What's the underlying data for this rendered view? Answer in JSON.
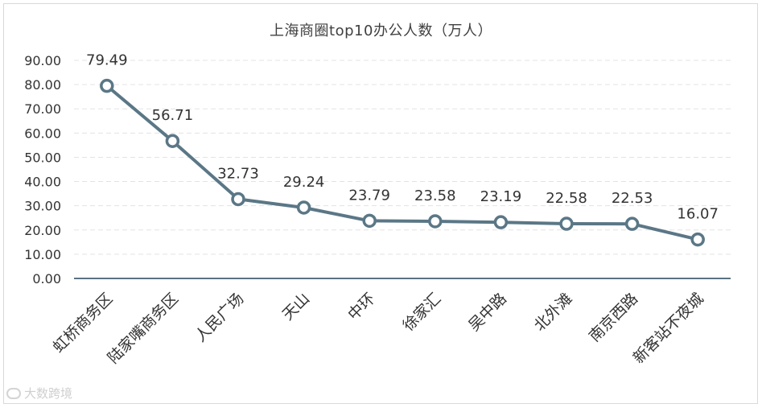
{
  "chart_data": {
    "type": "line",
    "title": "上海商圈top10办公人数（万人）",
    "categories": [
      "虹桥商务区",
      "陆家嘴商务区",
      "人民广场",
      "天山",
      "中环",
      "徐家汇",
      "吴中路",
      "北外滩",
      "南京西路",
      "新客站不夜城"
    ],
    "series": [
      {
        "values": [
          79.49,
          56.71,
          32.73,
          29.24,
          23.79,
          23.58,
          23.19,
          22.58,
          22.53,
          16.07
        ],
        "color": "#5b7786"
      }
    ],
    "data_labels": [
      "79.49",
      "56.71",
      "32.73",
      "29.24",
      "23.79",
      "23.58",
      "23.19",
      "22.58",
      "22.53",
      "16.07"
    ],
    "y_tick_labels": [
      "0.00",
      "10.00",
      "20.00",
      "30.00",
      "40.00",
      "50.00",
      "60.00",
      "70.00",
      "80.00",
      "90.00"
    ],
    "ylim": [
      0,
      90
    ],
    "xlabel": "",
    "ylabel": "",
    "grid": true,
    "gridline_style": "dashed",
    "legend": "none",
    "x_label_rotation_deg": -45
  },
  "watermark": {
    "text": "大数跨境",
    "icon": "watermark-logo-icon"
  }
}
